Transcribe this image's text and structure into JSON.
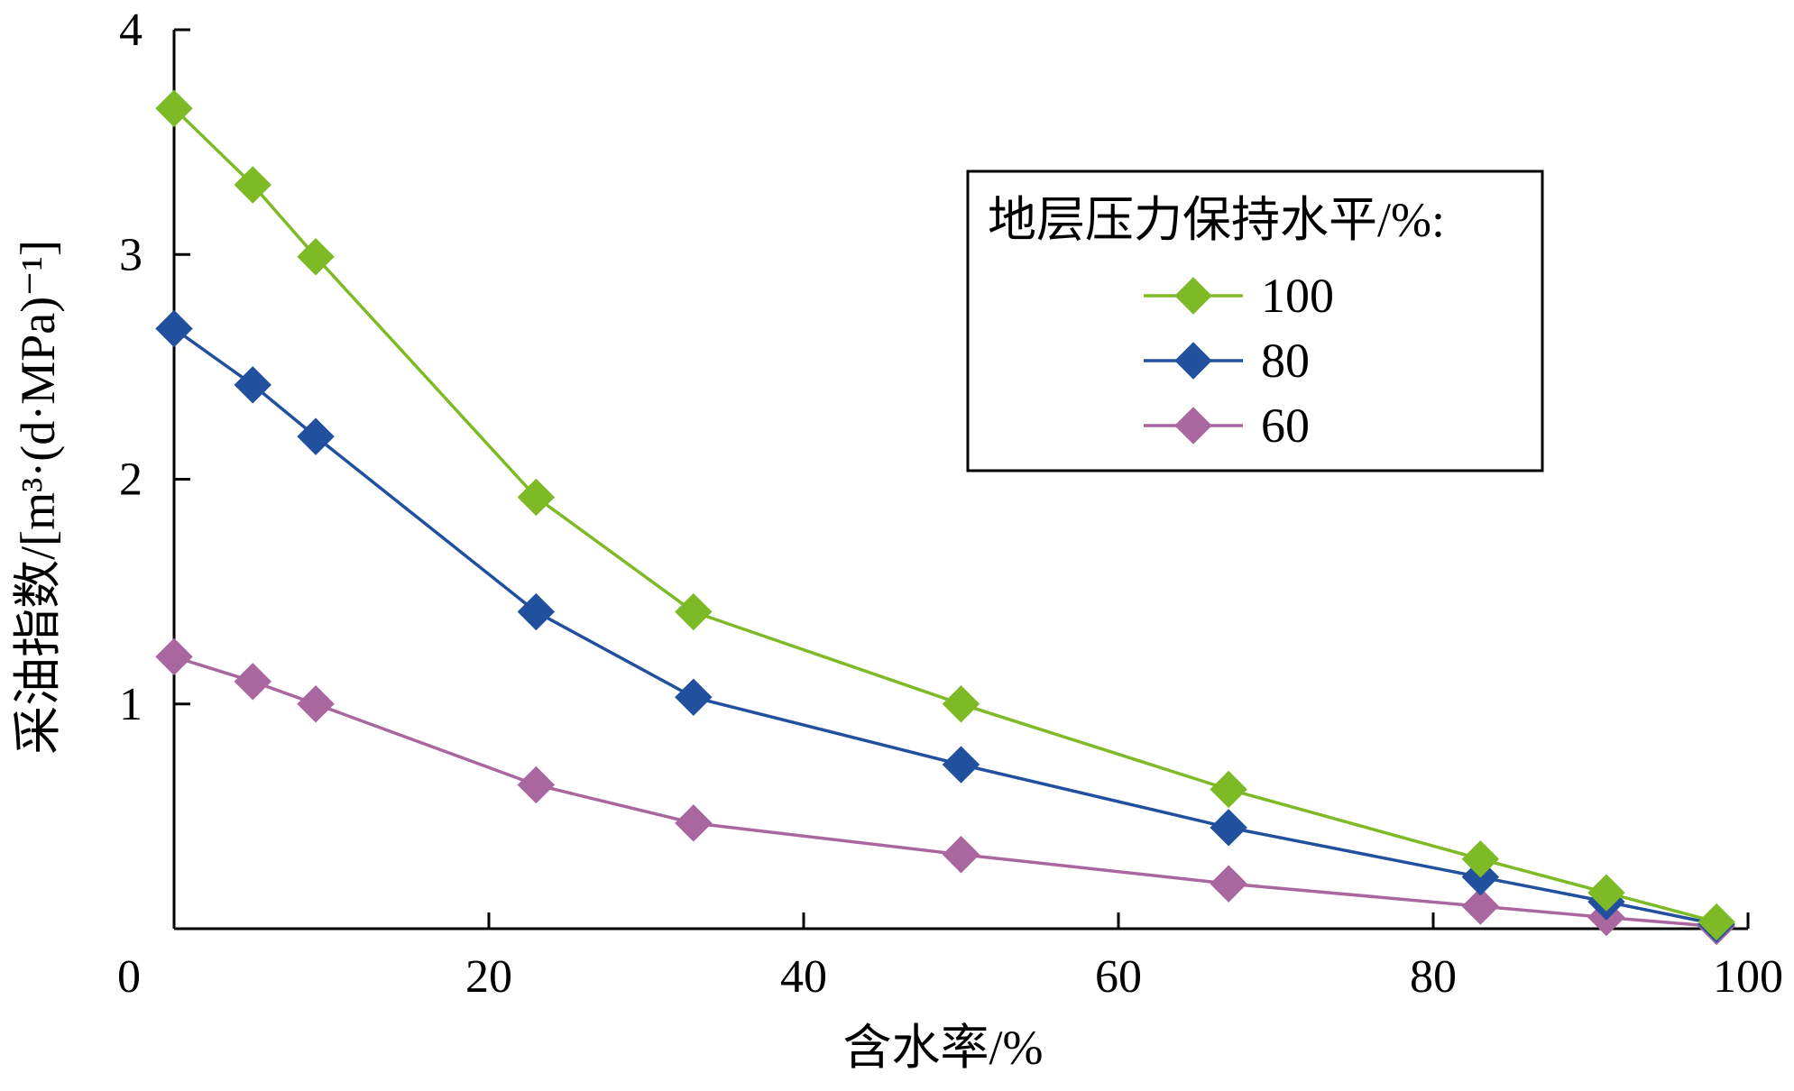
{
  "chart_data": {
    "type": "line",
    "xlabel": "含水率/%",
    "ylabel": "采油指数/[m³·(d·MPa)⁻¹]",
    "xlim": [
      0,
      100
    ],
    "ylim": [
      0,
      4
    ],
    "xticks": [
      0,
      20,
      40,
      60,
      80,
      100
    ],
    "yticks": [
      0,
      1,
      2,
      3,
      4
    ],
    "grid": false,
    "legend_position": "top-right",
    "legend_title": "地层压力保持水平/%:",
    "marker": "diamond",
    "x": [
      0,
      5,
      9,
      23,
      33,
      50,
      67,
      83,
      91,
      98
    ],
    "series": [
      {
        "name": "100",
        "color": "#7DBA26",
        "values": [
          3.65,
          3.31,
          2.99,
          1.92,
          1.41,
          1.0,
          0.62,
          0.31,
          0.16,
          0.03
        ]
      },
      {
        "name": "80",
        "color": "#21509E",
        "values": [
          2.67,
          2.42,
          2.19,
          1.41,
          1.03,
          0.73,
          0.45,
          0.23,
          0.12,
          0.02
        ]
      },
      {
        "name": "60",
        "color": "#A9669F",
        "values": [
          1.21,
          1.1,
          1.0,
          0.64,
          0.47,
          0.33,
          0.2,
          0.1,
          0.05,
          0.01
        ]
      }
    ]
  }
}
